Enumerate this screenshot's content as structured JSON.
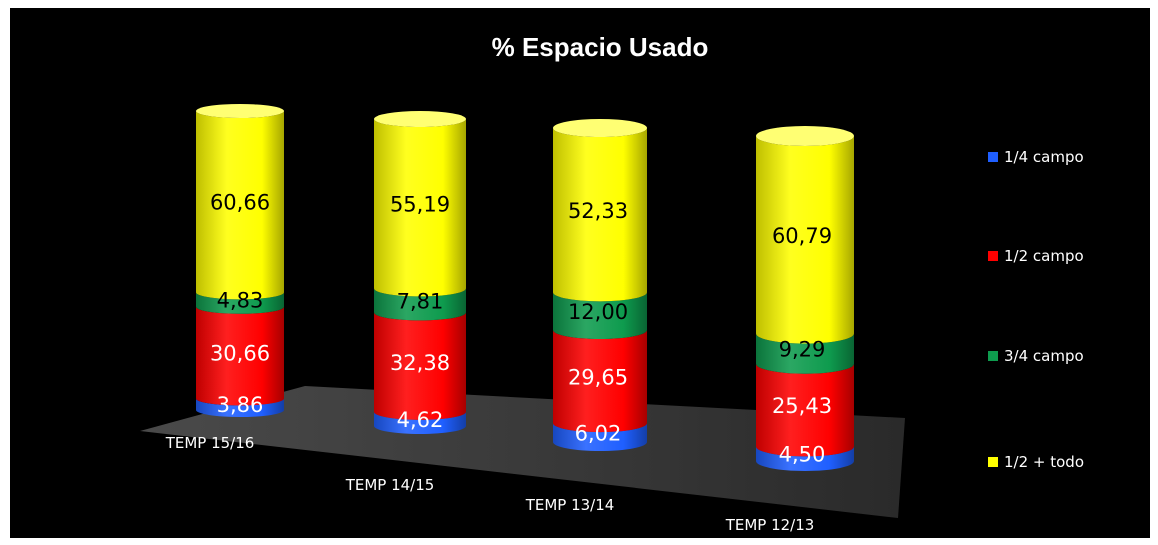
{
  "chart_data": {
    "type": "bar",
    "stacked": true,
    "three_d": true,
    "title": "% Espacio Usado",
    "categories": [
      "TEMP 15/16",
      "TEMP 14/15",
      "TEMP 13/14",
      "TEMP 12/13"
    ],
    "series": [
      {
        "name": "1/4 campo",
        "color": "#1f5fff",
        "values": [
          3.86,
          4.62,
          6.02,
          4.5
        ],
        "labels": [
          "3,86",
          "4,62",
          "6,02",
          "4,50"
        ]
      },
      {
        "name": "1/2 campo",
        "color": "#ff0000",
        "values": [
          30.66,
          32.38,
          29.65,
          25.43
        ],
        "labels": [
          "30,66",
          "32,38",
          "29,65",
          "25,43"
        ]
      },
      {
        "name": "3/4 campo",
        "color": "#0e9b4e",
        "values": [
          4.83,
          7.81,
          12.0,
          9.29
        ],
        "labels": [
          "4,83",
          "7,81",
          "12,00",
          "9,29"
        ]
      },
      {
        "name": "1/2 + todo",
        "color": "#ffff00",
        "values": [
          60.66,
          55.19,
          52.33,
          60.79
        ],
        "labels": [
          "60,66",
          "55,19",
          "52,33",
          "60,79"
        ]
      }
    ],
    "ylim": [
      0,
      100
    ],
    "legend_position": "right",
    "background": "#000000"
  }
}
